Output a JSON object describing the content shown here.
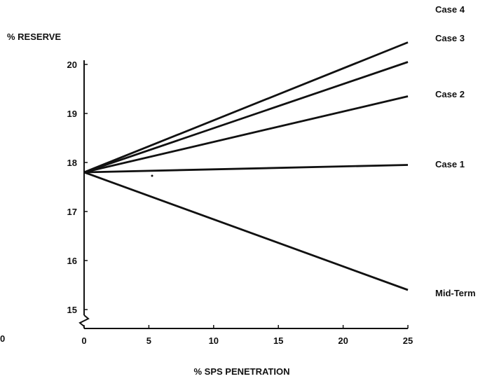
{
  "chart_data": {
    "type": "line",
    "title": "",
    "ylabel": "% RESERVE",
    "xlabel": "% SPS PENETRATION",
    "xlim": [
      0,
      25
    ],
    "ylim": [
      15,
      20
    ],
    "y_axis_break": true,
    "xticks": [
      "0",
      "5",
      "10",
      "15",
      "20",
      "25"
    ],
    "yticks": [
      "15",
      "16",
      "17",
      "18",
      "19",
      "20"
    ],
    "stray_x_label": "0",
    "grid": false,
    "legend": "none (series labeled at line ends, right side)",
    "series": [
      {
        "name": "Case 4",
        "x": [
          0,
          25
        ],
        "y": [
          17.8,
          20.45
        ]
      },
      {
        "name": "Case 3",
        "x": [
          0,
          25
        ],
        "y": [
          17.8,
          20.05
        ]
      },
      {
        "name": "Case 2",
        "x": [
          0,
          25
        ],
        "y": [
          17.8,
          19.35
        ]
      },
      {
        "name": "Case 1",
        "x": [
          0,
          25
        ],
        "y": [
          17.8,
          17.95
        ]
      },
      {
        "name": "Mid-Term",
        "x": [
          0,
          25
        ],
        "y": [
          17.8,
          15.4
        ]
      }
    ],
    "colors": {
      "line": "#111111",
      "axis": "#111111",
      "text": "#111111"
    }
  }
}
